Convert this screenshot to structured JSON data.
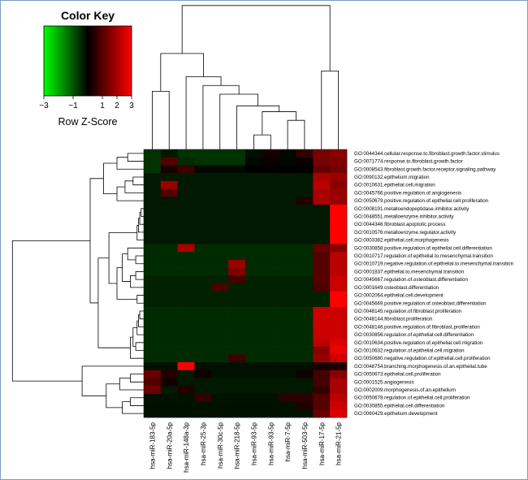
{
  "chart_data": {
    "type": "heatmap",
    "title": "Color Key",
    "color_key": {
      "label": "Row Z-Score",
      "ticks": [
        -3,
        -1,
        1,
        2,
        3
      ],
      "tick_labels": [
        "−3",
        "−1",
        "1",
        "2",
        "3"
      ],
      "range": [
        -3,
        3
      ],
      "colors": {
        "low": "#00ff00",
        "mid": "#000000",
        "high": "#ff0000"
      }
    },
    "columns": [
      "hsa-miR-183-5p",
      "hsa-miR-20a-5p",
      "hsa-miR-148a-3p",
      "hsa-miR-25-3p",
      "hsa-miR-30c-5p",
      "hsa-miR-218-5p",
      "hsa-miR-93-5p",
      "hsa-miR-93-5p",
      "hsa-miR-7-5p",
      "hsa-miR-503-5p",
      "hsa-miR-17-5p",
      "hsa-miR-21-5p"
    ],
    "rows": [
      "GO:0044344.cellular.response.to.fibroblast.growth.factor.stimulus",
      "GO:0071774.response.to.fibroblast.growth.factor",
      "GO:0008543.fibroblast.growth.factor.receptor.signaling.pathway",
      "GO:0090132.epithelium.migration",
      "GO:0010631.epithelial.cell.migration",
      "GO:0045766.positive.regulation.of.angiogenesis",
      "GO:0050679.positive.regulation.of.epithelial.cell.proliferation",
      "GO:0008191.metalloendopeptidase.inhibitor.activity",
      "GO:0048551.metalloenzyme.inhibitor.activity",
      "GO:0044346.fibroblast.apoptotic.process",
      "GO:0010576.metalloenzyme.regulator.activity",
      "GO:0003382.epithelial.cell.morphogenesis",
      "GO:0030858.positive.regulation.of.epithelial.cell.differentiation",
      "GO:0010717.regulation.of.epithelial.to.mesenchymal.transition",
      "GO:0010719.negative.regulation.of.epithelial.to.mesenchymal.transition",
      "GO:0001837.epithelial.to.mesenchymal.transition",
      "GO:0045667.regulation.of.osteoblast.differentiation",
      "GO:0001649.osteoblast.differentiation",
      "GO:0002064.epithelial.cell.development",
      "GO:0045669.positive.regulation.of.osteoblast.differentiation",
      "GO:0048145.regulation.of.fibroblast.proliferation",
      "GO:0048144.fibroblast.proliferation",
      "GO:0048146.positive.regulation.of.fibroblast.proliferation",
      "GO:0030856.regulation.of.epithelial.cell.differentiation",
      "GO:0010634.positive.regulation.of.epithelial.cell.migration",
      "GO:0010632.regulation.of.epithelial.cell.migration",
      "GO:0050680.negative.regulation.of.epithelial.cell.proliferation",
      "GO:0048754.branching.morphogenesis.of.an.epithelial.tube",
      "GO:0050673.epithelial.cell.proliferation",
      "GO:0001525.angiogenesis",
      "GO:0002009.morphogenesis.of.an.epithelium",
      "GO:0050678.regulation.of.epithelial.cell.proliferation",
      "GO:0030855.epithelial.cell.differentiation",
      "GO:0060429.epithelium.development"
    ],
    "values": [
      [
        -0.6,
        -0.3,
        -0.6,
        -0.6,
        -0.6,
        -0.6,
        -0.2,
        0.3,
        -0.1,
        0.6,
        1.4,
        1.6
      ],
      [
        -0.6,
        1.0,
        -0.5,
        -0.6,
        -0.6,
        -0.6,
        -0.1,
        0.1,
        -0.1,
        0.1,
        1.4,
        1.5
      ],
      [
        -0.6,
        0.3,
        0.7,
        -0.1,
        -0.1,
        -0.1,
        0.0,
        0.0,
        0.0,
        0.0,
        1.2,
        1.4
      ],
      [
        -0.3,
        -0.3,
        -0.3,
        -0.3,
        -0.3,
        -0.3,
        -0.3,
        -0.3,
        -0.3,
        -0.3,
        2.0,
        1.8
      ],
      [
        -0.3,
        1.8,
        -0.3,
        -0.3,
        -0.3,
        -0.3,
        -0.3,
        -0.3,
        -0.3,
        -0.3,
        2.2,
        1.6
      ],
      [
        -0.3,
        1.0,
        -0.3,
        -0.3,
        -0.3,
        -0.3,
        -0.3,
        -0.3,
        -0.3,
        -0.3,
        2.0,
        1.8
      ],
      [
        -0.3,
        -0.3,
        -0.3,
        -0.3,
        -0.3,
        -0.3,
        -0.3,
        -0.3,
        -0.3,
        0.4,
        2.0,
        1.8
      ],
      [
        -0.3,
        -0.3,
        -0.3,
        -0.3,
        -0.3,
        -0.3,
        -0.3,
        -0.3,
        -0.3,
        -0.3,
        -0.3,
        3.0
      ],
      [
        -0.3,
        -0.3,
        -0.3,
        -0.3,
        -0.3,
        -0.3,
        -0.3,
        -0.3,
        -0.3,
        -0.3,
        -0.3,
        3.0
      ],
      [
        -0.3,
        -0.3,
        -0.3,
        -0.3,
        -0.3,
        -0.3,
        -0.3,
        -0.3,
        -0.3,
        -0.3,
        -0.3,
        3.0
      ],
      [
        -0.3,
        -0.3,
        -0.3,
        -0.3,
        -0.3,
        -0.3,
        -0.3,
        -0.3,
        -0.3,
        -0.3,
        -0.3,
        3.0
      ],
      [
        -0.3,
        -0.3,
        -0.3,
        -0.3,
        -0.3,
        -0.3,
        -0.3,
        -0.3,
        -0.3,
        -0.3,
        -0.3,
        3.0
      ],
      [
        -0.5,
        -0.5,
        2.0,
        -0.5,
        -0.5,
        -0.5,
        -0.5,
        -0.5,
        -0.5,
        -0.5,
        1.2,
        1.6
      ],
      [
        -0.5,
        -0.5,
        -0.5,
        -0.5,
        -0.5,
        -0.5,
        -0.5,
        -0.5,
        -0.5,
        -0.5,
        1.0,
        2.2
      ],
      [
        -0.5,
        -0.5,
        -0.5,
        -0.5,
        -0.5,
        1.8,
        -0.5,
        -0.5,
        -0.5,
        -0.5,
        1.0,
        2.2
      ],
      [
        -0.5,
        -0.5,
        -0.5,
        -0.5,
        -0.5,
        1.5,
        -0.5,
        -0.5,
        -0.5,
        -0.5,
        1.0,
        2.2
      ],
      [
        -0.4,
        -0.4,
        -0.4,
        -0.4,
        -0.4,
        0.8,
        -0.4,
        -0.4,
        -0.4,
        -0.4,
        1.0,
        2.4
      ],
      [
        -0.4,
        -0.4,
        -0.4,
        -0.4,
        0.9,
        -0.4,
        -0.4,
        -0.4,
        -0.4,
        -0.4,
        0.9,
        2.4
      ],
      [
        -0.4,
        -0.4,
        -0.4,
        -0.4,
        -0.4,
        -0.4,
        -0.4,
        -0.4,
        -0.4,
        -0.4,
        -0.4,
        3.0
      ],
      [
        -0.4,
        -0.4,
        -0.4,
        -0.4,
        -0.4,
        -0.4,
        -0.4,
        -0.4,
        -0.4,
        -0.4,
        -0.4,
        3.0
      ],
      [
        -0.5,
        -0.5,
        -0.5,
        -0.5,
        -0.5,
        -0.5,
        -0.5,
        -0.5,
        -0.5,
        -0.5,
        2.4,
        2.4
      ],
      [
        -0.5,
        -0.5,
        -0.5,
        -0.5,
        -0.5,
        -0.5,
        -0.5,
        -0.5,
        -0.5,
        -0.5,
        2.4,
        2.4
      ],
      [
        -0.5,
        -0.5,
        -0.5,
        -0.5,
        -0.5,
        -0.5,
        -0.5,
        -0.5,
        -0.5,
        -0.5,
        2.4,
        2.4
      ],
      [
        -0.5,
        -0.5,
        -0.5,
        -0.5,
        -0.5,
        -0.5,
        -0.5,
        -0.5,
        -0.5,
        -0.5,
        2.4,
        2.4
      ],
      [
        -0.5,
        -0.5,
        -0.5,
        -0.5,
        -0.5,
        -0.5,
        -0.5,
        -0.5,
        -0.5,
        -0.5,
        2.2,
        2.6
      ],
      [
        -0.5,
        -0.5,
        -0.5,
        -0.5,
        -0.5,
        -0.5,
        -0.5,
        -0.5,
        -0.5,
        -0.5,
        1.6,
        2.8
      ],
      [
        -0.5,
        -0.5,
        -0.5,
        -0.5,
        -0.5,
        0.7,
        -0.5,
        -0.5,
        -0.5,
        -0.5,
        1.8,
        2.4
      ],
      [
        -0.2,
        -0.2,
        3.0,
        -0.2,
        -0.2,
        -0.2,
        -0.2,
        -0.2,
        -0.2,
        -0.2,
        0.3,
        0.3
      ],
      [
        1.2,
        0.4,
        -0.3,
        0.2,
        -0.2,
        -0.2,
        -0.2,
        -0.2,
        -0.2,
        0.2,
        0.8,
        1.6
      ],
      [
        1.0,
        0.2,
        -0.3,
        -0.3,
        -0.3,
        -0.3,
        -0.3,
        -0.3,
        -0.3,
        -0.3,
        0.8,
        2.0
      ],
      [
        1.3,
        -0.3,
        0.4,
        -0.3,
        -0.3,
        -0.3,
        -0.3,
        -0.3,
        -0.3,
        -0.3,
        0.6,
        2.0
      ],
      [
        -0.2,
        -0.2,
        -0.2,
        0.6,
        -0.2,
        -0.2,
        -0.2,
        -0.2,
        0.5,
        0.5,
        1.0,
        2.2
      ],
      [
        -0.2,
        -0.2,
        -0.2,
        -0.2,
        -0.2,
        -0.2,
        -0.2,
        -0.2,
        -0.2,
        0.4,
        1.0,
        2.4
      ],
      [
        -0.2,
        -0.2,
        -0.2,
        -0.2,
        -0.2,
        -0.2,
        -0.2,
        -0.2,
        -0.2,
        -0.2,
        1.2,
        2.6
      ]
    ]
  }
}
